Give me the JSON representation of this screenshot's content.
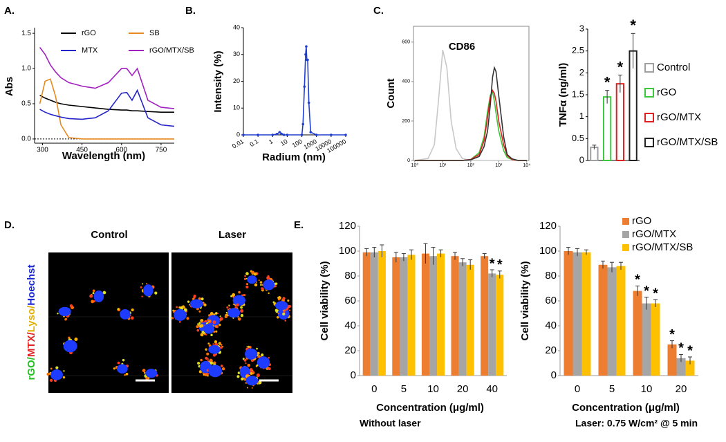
{
  "panel_labels": [
    "A.",
    "B.",
    "C.",
    "D.",
    "E."
  ],
  "micrograph": {
    "columns": [
      "Control",
      "Laser"
    ],
    "stain_label": [
      "rGO/",
      "MTX/",
      "Lyso/",
      "Hoechst"
    ]
  },
  "chart_data": [
    {
      "type": "line",
      "xlabel": "Wavelength (nm)",
      "ylabel": "Abs",
      "legend": "top",
      "x": [
        290,
        310,
        330,
        350,
        370,
        400,
        450,
        500,
        550,
        600,
        620,
        640,
        660,
        700,
        750,
        800
      ],
      "xlim": [
        270,
        800
      ],
      "xticks": [
        300,
        450,
        600,
        750
      ],
      "ylim": [
        -0.06,
        1.58
      ],
      "yticks": [
        {
          "value": 0,
          "label": "0.0"
        },
        0.5,
        {
          "value": 1,
          "label": "1.0"
        },
        1.5
      ],
      "series": [
        {
          "name": "rGO",
          "color": "#000000",
          "values": [
            0.62,
            0.58,
            0.55,
            0.52,
            0.5,
            0.48,
            0.46,
            0.44,
            0.42,
            0.41,
            0.41,
            0.4,
            0.4,
            0.39,
            0.38,
            0.38
          ]
        },
        {
          "name": "SB",
          "color": "#e8891e",
          "values": [
            0.5,
            0.82,
            0.85,
            0.6,
            0.2,
            0.02,
            0,
            0,
            0,
            0,
            0,
            0,
            0,
            0,
            0,
            0
          ]
        },
        {
          "name": "MTX",
          "color": "#2323c8",
          "values": [
            0.42,
            0.38,
            0.35,
            0.33,
            0.31,
            0.29,
            0.28,
            0.3,
            0.4,
            0.65,
            0.66,
            0.55,
            0.69,
            0.3,
            0.2,
            0.18
          ]
        },
        {
          "name": "rGO/MTX/SB",
          "color": "#a020c0",
          "values": [
            1.3,
            1.2,
            1.05,
            0.95,
            0.87,
            0.8,
            0.75,
            0.72,
            0.8,
            1.0,
            1.0,
            0.9,
            1.0,
            0.55,
            0.45,
            0.43
          ]
        }
      ]
    },
    {
      "type": "line",
      "xlabel": "Radium (nm)",
      "ylabel": "Intensity (%)",
      "log_x": true,
      "markers": true,
      "x": [
        0.01,
        0.1,
        1,
        2,
        3,
        4,
        6,
        10,
        100,
        120,
        150,
        180,
        200,
        220,
        250,
        300,
        400,
        1000,
        10000,
        100000
      ],
      "xlim": [
        0.01,
        100000
      ],
      "xticks": [
        0.01,
        0.1,
        1,
        10,
        100,
        1000,
        10000,
        100000
      ],
      "ylim": [
        0,
        40
      ],
      "yticks": [
        0,
        10,
        20,
        30,
        40
      ],
      "series": [
        {
          "color": "#1f3fd0",
          "values": [
            0,
            0,
            0,
            0.3,
            1,
            0.4,
            0,
            0,
            0,
            4,
            18,
            30,
            33,
            28,
            28,
            12,
            1,
            0,
            0,
            0
          ]
        }
      ]
    },
    {
      "type": "line",
      "title": "CD86",
      "ylabel": "Count",
      "log_x": true,
      "x": [
        1,
        3,
        5,
        7,
        10,
        14,
        20,
        30,
        50,
        100,
        200,
        300,
        400,
        500,
        600,
        700,
        800,
        1000,
        1500,
        2000,
        3000,
        5000,
        10000
      ],
      "xlim": [
        0.9,
        12000
      ],
      "xticks": [
        {
          "value": 1,
          "label": "10⁰"
        },
        {
          "value": 10,
          "label": "10¹"
        },
        {
          "value": 100,
          "label": "10²"
        },
        {
          "value": 1000,
          "label": "10³"
        },
        {
          "value": 10000,
          "label": "10⁴"
        }
      ],
      "ylim": [
        0,
        680
      ],
      "yticks": [
        0,
        200,
        400,
        600
      ],
      "series": [
        {
          "color": "#c8c8c8",
          "values": [
            0,
            10,
            80,
            300,
            560,
            470,
            200,
            60,
            10,
            0,
            0,
            0,
            0,
            0,
            0,
            0,
            0,
            0,
            0,
            0,
            0,
            0,
            0
          ]
        },
        {
          "color": "#3cc83c",
          "values": [
            0,
            0,
            0,
            0,
            0,
            0,
            0,
            0,
            0,
            5,
            40,
            120,
            250,
            330,
            350,
            300,
            240,
            150,
            50,
            15,
            5,
            0,
            0
          ]
        },
        {
          "color": "#e02020",
          "values": [
            0,
            0,
            0,
            0,
            0,
            0,
            0,
            0,
            0,
            5,
            30,
            100,
            220,
            320,
            355,
            340,
            300,
            200,
            80,
            25,
            5,
            0,
            0
          ]
        },
        {
          "color": "#333333",
          "values": [
            0,
            0,
            0,
            0,
            0,
            0,
            0,
            0,
            0,
            3,
            20,
            70,
            150,
            280,
            420,
            470,
            450,
            330,
            120,
            30,
            8,
            0,
            0
          ]
        }
      ]
    },
    {
      "type": "bar",
      "ylabel": "TNFα (ng/ml)",
      "legend": "right",
      "categories": [
        "Control",
        "rGO",
        "rGO/MTX",
        "rGO/MTX/SB"
      ],
      "colors": [
        "#a0a0a0",
        "#3cc83c",
        "#e02020",
        "#222222"
      ],
      "values": [
        0.3,
        1.45,
        1.75,
        2.5
      ],
      "errors": [
        0.05,
        0.15,
        0.2,
        0.4
      ],
      "stars": [
        null,
        "*",
        "*",
        "*"
      ],
      "ylim": [
        0,
        3
      ],
      "yticks": [
        0,
        0.5,
        1,
        1.5,
        2,
        2.5,
        3
      ]
    },
    {
      "type": "bar",
      "xlabel": "Concentration (μg/ml)",
      "ylabel": "Cell viability (%)",
      "caption": "Without laser",
      "categories": [
        "0",
        "5",
        "10",
        "20",
        "40"
      ],
      "ylim": [
        0,
        120
      ],
      "yticks": [
        0,
        20,
        40,
        60,
        80,
        100,
        120
      ],
      "series": [
        {
          "color": "#ed7d31",
          "values": [
            99,
            95,
            98,
            96,
            96
          ],
          "errors": [
            3,
            4,
            8,
            3,
            2
          ],
          "stars": [
            null,
            null,
            null,
            null,
            null
          ]
        },
        {
          "color": "#a5a5a5",
          "values": [
            99,
            95,
            96,
            91,
            82
          ],
          "errors": [
            4,
            3,
            7,
            3,
            3
          ],
          "stars": [
            null,
            null,
            null,
            null,
            "*"
          ]
        },
        {
          "color": "#ffc000",
          "values": [
            100,
            97,
            98,
            89,
            81
          ],
          "errors": [
            5,
            4,
            3,
            4,
            3
          ],
          "stars": [
            null,
            null,
            null,
            null,
            "*"
          ]
        }
      ]
    },
    {
      "type": "bar",
      "xlabel": "Concentration (μg/ml)",
      "ylabel": "Cell viability (%)",
      "caption": "Laser: 0.75 W/cm² @ 5 min",
      "legend": "top-right",
      "categories": [
        "0",
        "5",
        "10",
        "20"
      ],
      "ylim": [
        0,
        120
      ],
      "yticks": [
        0,
        20,
        40,
        60,
        80,
        100,
        120
      ],
      "series": [
        {
          "name": "rGO",
          "color": "#ed7d31",
          "values": [
            100,
            89,
            68,
            25
          ],
          "errors": [
            3,
            3,
            4,
            3
          ],
          "stars": [
            null,
            null,
            "*",
            "*"
          ]
        },
        {
          "name": "rGO/MTX",
          "color": "#a5a5a5",
          "values": [
            99,
            87,
            58,
            14
          ],
          "errors": [
            3,
            4,
            5,
            3
          ],
          "stars": [
            null,
            null,
            "*",
            "*"
          ]
        },
        {
          "name": "rGO/MTX/SB",
          "color": "#ffc000",
          "values": [
            99,
            88,
            58,
            12
          ],
          "errors": [
            2,
            3,
            3,
            3
          ],
          "stars": [
            null,
            null,
            "*",
            "*"
          ]
        }
      ]
    }
  ]
}
